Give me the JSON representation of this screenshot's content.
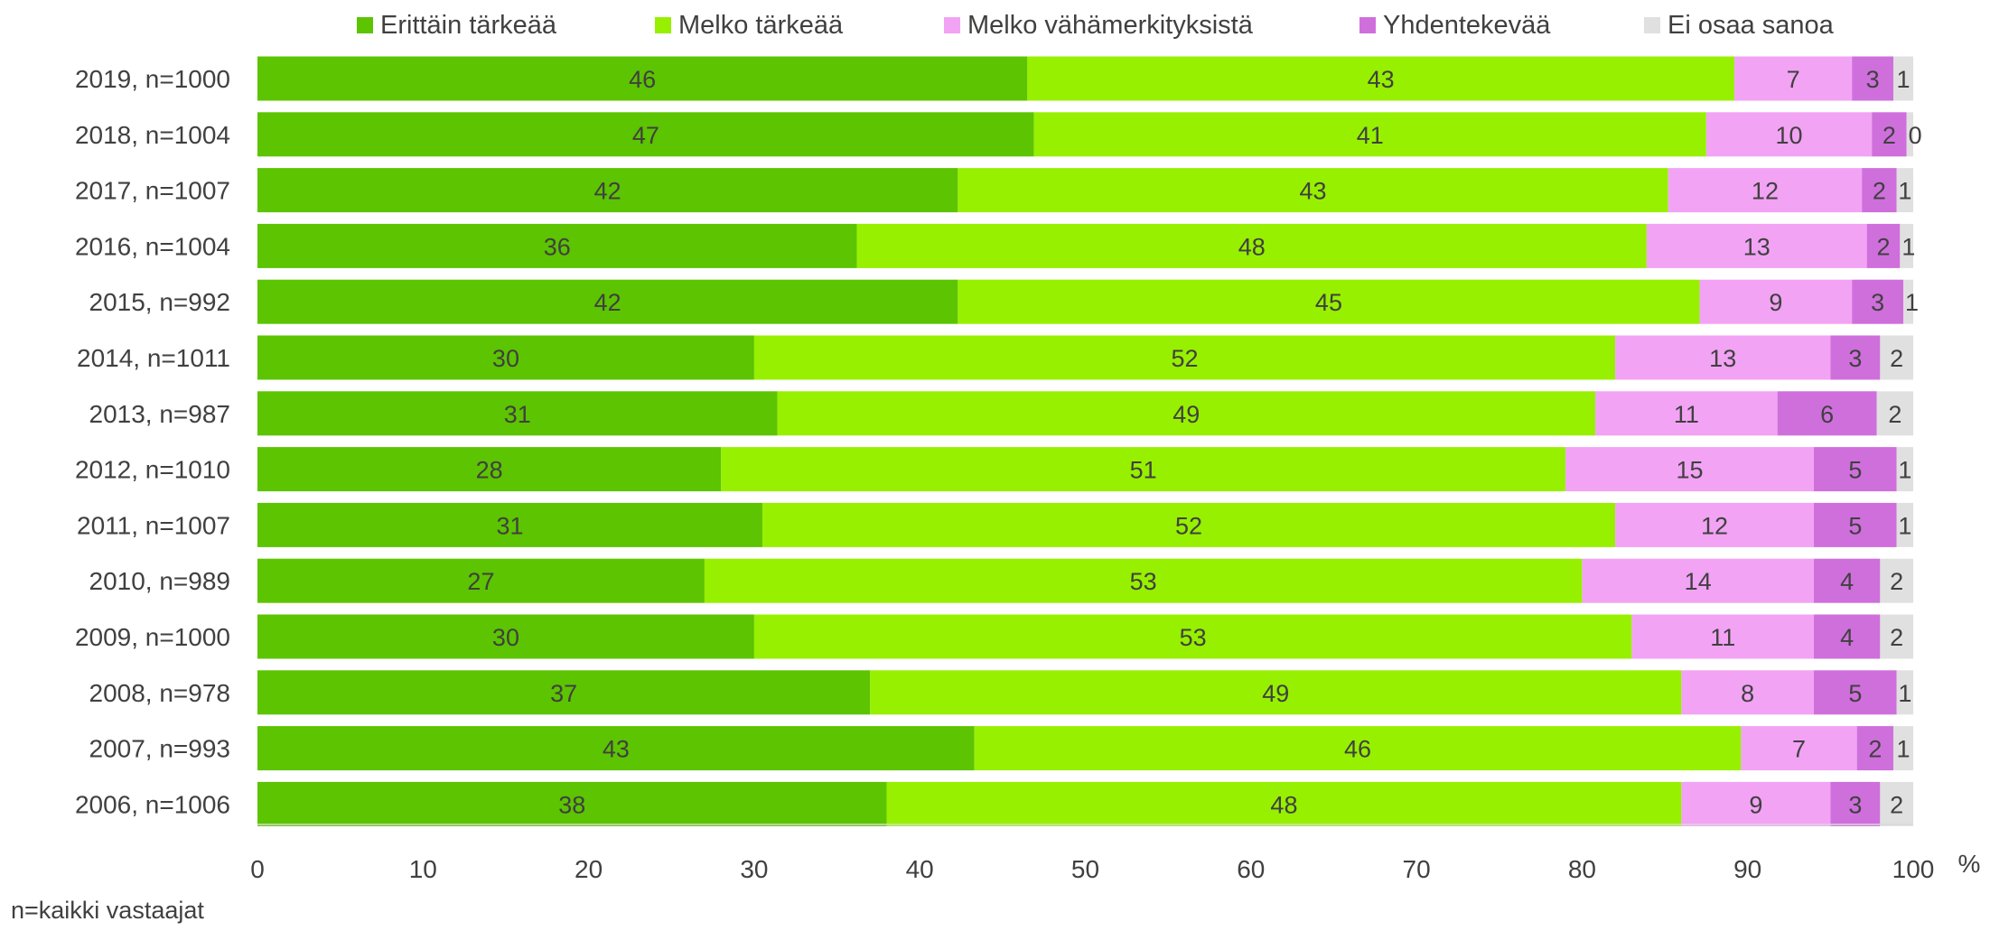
{
  "chart_data": {
    "type": "bar",
    "orientation": "horizontal",
    "stacked": true,
    "unit_label": "%",
    "note": "n=kaikki vastaajat",
    "categories": [
      "2019, n=1000",
      "2018, n=1004",
      "2017, n=1007",
      "2016, n=1004",
      "2015, n=992",
      "2014, n=1011",
      "2013, n=987",
      "2012, n=1010",
      "2011, n=1007",
      "2010, n=989",
      "2009, n=1000",
      "2008, n=978",
      "2007, n=993",
      "2006, n=1006"
    ],
    "series": [
      {
        "name": "Erittäin tärkeää",
        "color": "#5cc400",
        "values": [
          46.5,
          46.9,
          42.3,
          36.2,
          42.3,
          30.0,
          31.4,
          28.0,
          30.5,
          27.0,
          30.0,
          37.0,
          43.3,
          38.0
        ],
        "labels": [
          "46",
          "47",
          "42",
          "36",
          "42",
          "30",
          "31",
          "28",
          "31",
          "27",
          "30",
          "37",
          "43",
          "38"
        ]
      },
      {
        "name": "Melko tärkeää",
        "color": "#97f000",
        "values": [
          42.7,
          40.6,
          42.9,
          47.7,
          44.8,
          52.0,
          49.4,
          51.0,
          51.5,
          53.0,
          53.0,
          49.0,
          46.3,
          48.0
        ],
        "labels": [
          "43",
          "41",
          "43",
          "48",
          "45",
          "52",
          "49",
          "51",
          "52",
          "53",
          "53",
          "49",
          "46",
          "48"
        ]
      },
      {
        "name": "Melko vähämerkityksistä",
        "color": "#f2a3f4",
        "values": [
          7.1,
          10.0,
          11.7,
          13.3,
          9.2,
          13.0,
          11.0,
          15.0,
          12.0,
          14.0,
          11.0,
          8.0,
          7.0,
          9.0
        ],
        "labels": [
          "7",
          "10",
          "12",
          "13",
          "9",
          "13",
          "11",
          "15",
          "12",
          "14",
          "11",
          "8",
          "7",
          "9"
        ]
      },
      {
        "name": "Yhdentekevää",
        "color": "#cf6fdc",
        "values": [
          2.5,
          2.1,
          2.1,
          2.0,
          3.1,
          3.0,
          6.0,
          5.0,
          5.0,
          4.0,
          4.0,
          5.0,
          2.2,
          3.0
        ],
        "labels": [
          "3",
          "2",
          "2",
          "2",
          "3",
          "3",
          "6",
          "5",
          "5",
          "4",
          "4",
          "5",
          "2",
          "3"
        ]
      },
      {
        "name": "Ei osaa sanoa",
        "color": "#e0e0e0",
        "values": [
          1.2,
          0.4,
          1.0,
          0.8,
          0.6,
          2.0,
          2.2,
          1.0,
          1.0,
          2.0,
          2.0,
          1.0,
          1.2,
          2.0
        ],
        "labels": [
          "1",
          "0",
          "1",
          "1",
          "1",
          "2",
          "2",
          "1",
          "1",
          "2",
          "2",
          "1",
          "1",
          "2"
        ]
      }
    ],
    "xlim": [
      0,
      100
    ],
    "xticks": [
      "0",
      "10",
      "20",
      "30",
      "40",
      "50",
      "60",
      "70",
      "80",
      "90",
      "100"
    ],
    "legend_position": "top",
    "grid": false
  }
}
